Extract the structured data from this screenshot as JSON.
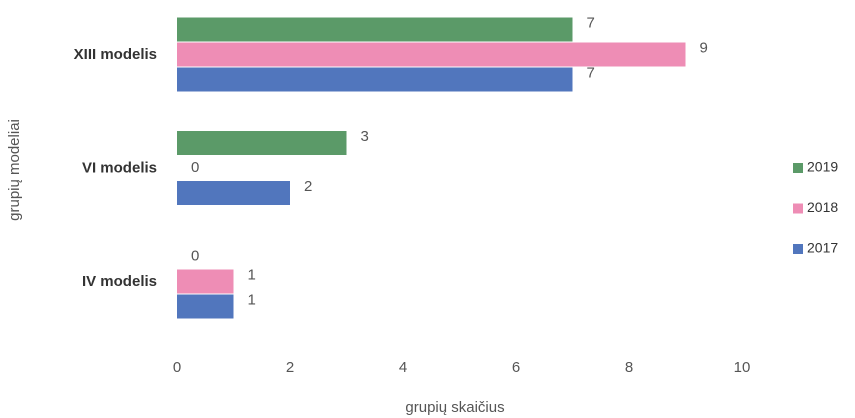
{
  "chart_data": {
    "type": "barh",
    "categories": [
      "XIII modelis",
      "VI modelis",
      "IV modelis"
    ],
    "series": [
      {
        "name": "2019",
        "color": "#5b9a68",
        "values": [
          7,
          3,
          0
        ]
      },
      {
        "name": "2018",
        "color": "#ee8db5",
        "values": [
          9,
          0,
          1
        ]
      },
      {
        "name": "2017",
        "color": "#5176bd",
        "values": [
          7,
          2,
          1
        ]
      }
    ],
    "xlim": [
      0,
      10
    ],
    "xticks": [
      0,
      2,
      4,
      6,
      8,
      10
    ],
    "xlabel": "grupių skaičius",
    "ylabel": "grupių modeliai",
    "legend": "right",
    "grid": false
  }
}
